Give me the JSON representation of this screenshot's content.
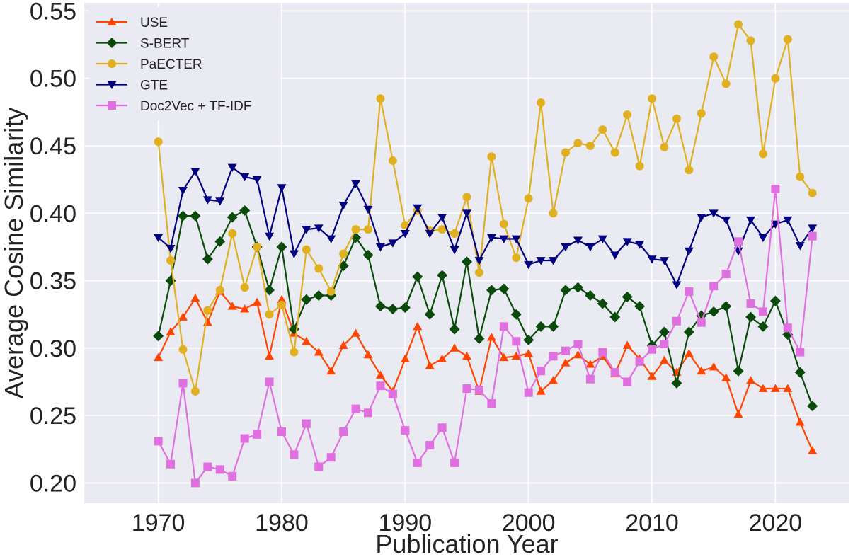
{
  "chart_data": {
    "type": "line",
    "title": "",
    "xlabel": "Publication Year",
    "ylabel": "Average Cosine Similarity",
    "xlim": [
      1964,
      2026
    ],
    "ylim": [
      0.185,
      0.556
    ],
    "grid": true,
    "legend_position": "top-left",
    "xticks": [
      1970,
      1980,
      1990,
      2000,
      2010,
      2020
    ],
    "yticks": [
      0.2,
      0.25,
      0.3,
      0.35,
      0.4,
      0.45,
      0.5,
      0.55
    ],
    "ytick_labels": [
      "0.20",
      "0.25",
      "0.30",
      "0.35",
      "0.40",
      "0.45",
      "0.50",
      "0.55"
    ],
    "x": [
      1970,
      1971,
      1972,
      1973,
      1974,
      1975,
      1976,
      1977,
      1978,
      1979,
      1980,
      1981,
      1982,
      1983,
      1984,
      1985,
      1986,
      1987,
      1988,
      1989,
      1990,
      1991,
      1992,
      1993,
      1994,
      1995,
      1996,
      1997,
      1998,
      1999,
      2000,
      2001,
      2002,
      2003,
      2004,
      2005,
      2006,
      2007,
      2008,
      2009,
      2010,
      2011,
      2012,
      2013,
      2014,
      2015,
      2016,
      2017,
      2018,
      2019,
      2020,
      2021,
      2022,
      2023
    ],
    "series": [
      {
        "name": "USE",
        "color": "#ff4500",
        "marker": "triangle-up",
        "values": [
          0.293,
          0.312,
          0.323,
          0.337,
          0.319,
          0.342,
          0.331,
          0.329,
          0.334,
          0.294,
          0.336,
          0.311,
          0.305,
          0.297,
          0.283,
          0.302,
          0.311,
          0.295,
          0.28,
          0.268,
          0.292,
          0.316,
          0.287,
          0.292,
          0.3,
          0.294,
          0.268,
          0.308,
          0.293,
          0.294,
          0.296,
          0.268,
          0.276,
          0.289,
          0.295,
          0.288,
          0.294,
          0.281,
          0.302,
          0.292,
          0.279,
          0.291,
          0.282,
          0.296,
          0.283,
          0.286,
          0.278,
          0.251,
          0.276,
          0.27,
          0.27,
          0.27,
          0.245,
          0.224
        ]
      },
      {
        "name": "S-BERT",
        "color": "#0a4a0a",
        "marker": "diamond",
        "values": [
          0.309,
          0.35,
          0.398,
          0.398,
          0.366,
          0.379,
          0.397,
          0.402,
          0.375,
          0.343,
          0.375,
          0.314,
          0.336,
          0.339,
          0.339,
          0.361,
          0.382,
          0.369,
          0.331,
          0.329,
          0.33,
          0.353,
          0.325,
          0.354,
          0.314,
          0.364,
          0.307,
          0.343,
          0.344,
          0.325,
          0.306,
          0.316,
          0.316,
          0.343,
          0.345,
          0.339,
          0.333,
          0.323,
          0.338,
          0.331,
          0.302,
          0.312,
          0.274,
          0.312,
          0.324,
          0.327,
          0.331,
          0.283,
          0.323,
          0.316,
          0.335,
          0.31,
          0.282,
          0.257
        ]
      },
      {
        "name": "PaECTER",
        "color": "#e0b020",
        "marker": "circle",
        "values": [
          0.453,
          0.365,
          0.299,
          0.268,
          0.328,
          0.343,
          0.385,
          0.345,
          0.375,
          0.325,
          0.332,
          0.297,
          0.373,
          0.359,
          0.342,
          0.37,
          0.388,
          0.388,
          0.485,
          0.439,
          0.391,
          0.402,
          0.387,
          0.388,
          0.385,
          0.412,
          0.356,
          0.442,
          0.392,
          0.367,
          0.411,
          0.482,
          0.4,
          0.445,
          0.452,
          0.45,
          0.462,
          0.445,
          0.473,
          0.435,
          0.485,
          0.449,
          0.47,
          0.432,
          0.474,
          0.516,
          0.496,
          0.54,
          0.528,
          0.444,
          0.5,
          0.529,
          0.427,
          0.415
        ]
      },
      {
        "name": "GTE",
        "color": "#000080",
        "marker": "triangle-down",
        "values": [
          0.382,
          0.374,
          0.417,
          0.431,
          0.41,
          0.409,
          0.434,
          0.427,
          0.425,
          0.383,
          0.419,
          0.37,
          0.388,
          0.389,
          0.381,
          0.406,
          0.422,
          0.403,
          0.375,
          0.378,
          0.385,
          0.404,
          0.385,
          0.397,
          0.373,
          0.4,
          0.365,
          0.382,
          0.381,
          0.381,
          0.362,
          0.365,
          0.365,
          0.375,
          0.38,
          0.375,
          0.381,
          0.369,
          0.379,
          0.377,
          0.366,
          0.365,
          0.347,
          0.372,
          0.397,
          0.4,
          0.395,
          0.372,
          0.395,
          0.382,
          0.392,
          0.395,
          0.376,
          0.389
        ]
      },
      {
        "name": "Doc2Vec + TF-IDF",
        "color": "#e070e0",
        "marker": "square",
        "values": [
          0.231,
          0.214,
          0.274,
          0.2,
          0.212,
          0.21,
          0.205,
          0.233,
          0.236,
          0.275,
          0.238,
          0.221,
          0.244,
          0.212,
          0.219,
          0.238,
          0.255,
          0.252,
          0.272,
          0.266,
          0.239,
          0.215,
          0.228,
          0.241,
          0.215,
          0.27,
          0.269,
          0.259,
          0.316,
          0.305,
          0.267,
          0.283,
          0.294,
          0.298,
          0.303,
          0.277,
          0.297,
          0.282,
          0.275,
          0.29,
          0.299,
          0.303,
          0.32,
          0.342,
          0.319,
          0.346,
          0.355,
          0.379,
          0.333,
          0.327,
          0.418,
          0.315,
          0.297,
          0.383
        ]
      }
    ]
  }
}
